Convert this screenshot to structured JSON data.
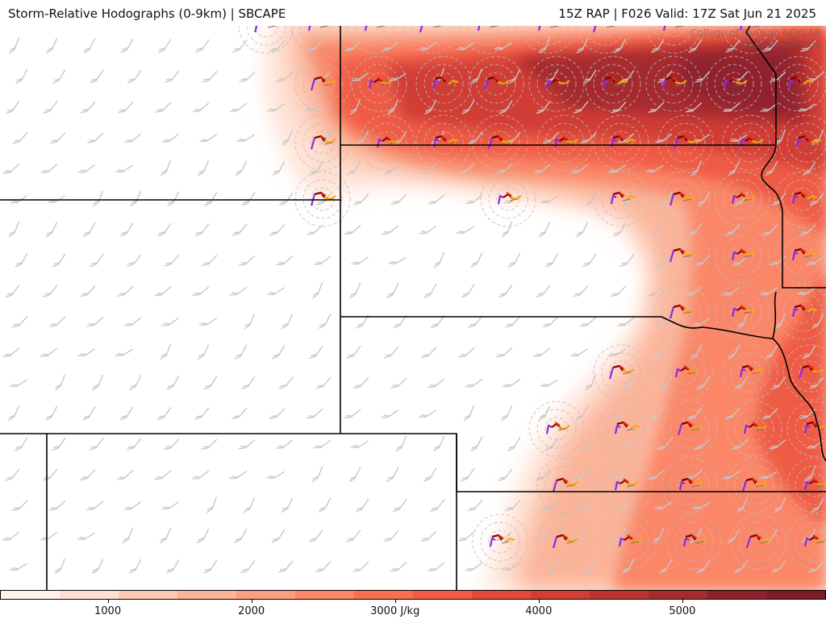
{
  "header": {
    "left_title": "Storm-Relative Hodographs (0-9km) | SBCAPE",
    "right_title": "15Z RAP | F026 Valid: 17Z Sat Jun 21 2025"
  },
  "watermark": {
    "line1": "College of DuPage NEXLAB",
    "line2": "weather.cod.edu"
  },
  "colorbar": {
    "unit": "J/kg",
    "ticks": [
      "1000",
      "2000",
      "3000 J/kg",
      "4000",
      "5000"
    ],
    "tick_values": [
      1000,
      2000,
      3000,
      4000,
      5000
    ],
    "range": [
      250,
      6000
    ],
    "colors": [
      "#fff1eb",
      "#fee0d2",
      "#fdcab5",
      "#fcb499",
      "#fc9e80",
      "#fb8767",
      "#f7704f",
      "#ef5b44",
      "#e24a3b",
      "#d03e36",
      "#bc3431",
      "#a52b2e",
      "#8f232d",
      "#7a1e2c"
    ]
  },
  "hodograph_colors": {
    "0-1km": "#800000",
    "1-3km": "#e83010",
    "3-6km": "#ffa500",
    "6-9km": "#8a2be2"
  },
  "map": {
    "region": "Central Plains",
    "overlay": "storm-relative hodographs",
    "fill": "SBCAPE"
  }
}
